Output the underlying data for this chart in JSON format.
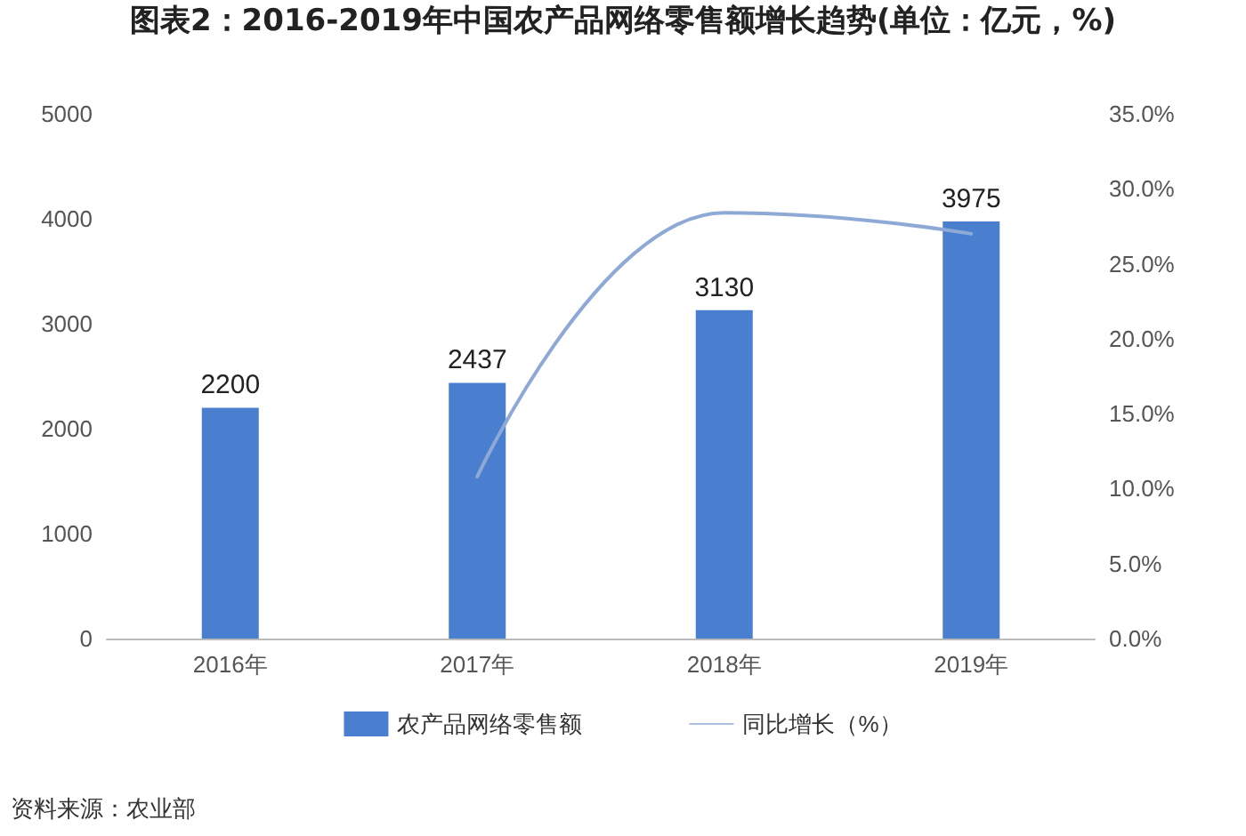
{
  "chart_data": {
    "type": "bar",
    "title": "图表2：2016-2019年中国农产品网络零售额增长趋势(单位：亿元，%)",
    "categories": [
      "2016年",
      "2017年",
      "2018年",
      "2019年"
    ],
    "series": [
      {
        "name": "农产品网络零售额",
        "color": "#4a7fd0",
        "values": [
          2200,
          2437,
          3130,
          3975
        ],
        "value_labels": [
          "2200",
          "2437",
          "3130",
          "3975"
        ]
      },
      {
        "name": "同比增长（%）",
        "type": "line",
        "axis": "y2",
        "color": "#8fa9d6",
        "values": [
          null,
          10.8,
          28.4,
          27.0
        ]
      }
    ],
    "ylim": [
      0,
      5000
    ],
    "yticks": [
      0,
      1000,
      2000,
      3000,
      4000,
      5000
    ],
    "y2lim": [
      0,
      35
    ],
    "y2ticks": [
      {
        "value": 0,
        "label": "0.0%"
      },
      {
        "value": 5,
        "label": "5.0%"
      },
      {
        "value": 10,
        "label": "10.0%"
      },
      {
        "value": 15,
        "label": "15.0%"
      },
      {
        "value": 20,
        "label": "20.0%"
      },
      {
        "value": 25,
        "label": "25.0%"
      },
      {
        "value": 30,
        "label": "30.0%"
      },
      {
        "value": 35,
        "label": "35.0%"
      }
    ],
    "grid": false,
    "legend": "bottom",
    "marker": "none",
    "line_style": "solid",
    "annotations": [
      "资料来源：农业部"
    ]
  }
}
